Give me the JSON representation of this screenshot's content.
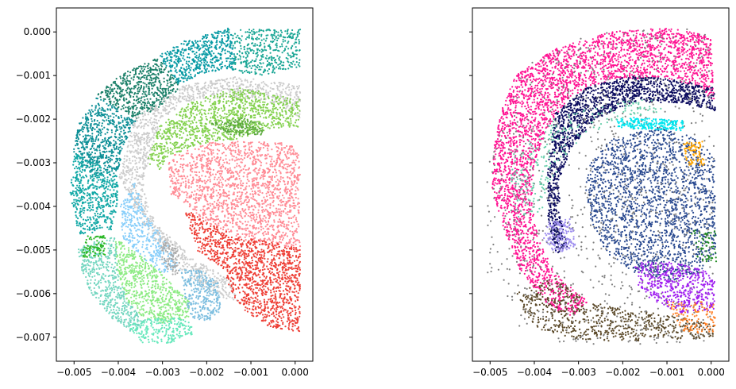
{
  "chart_data": [
    {
      "type": "scatter",
      "xlim": [
        -0.0054,
        0.0004
      ],
      "ylim": [
        -0.00755,
        0.00055
      ],
      "x_ticks": [
        -0.005,
        -0.004,
        -0.003,
        -0.002,
        -0.001,
        0.0
      ],
      "x_tick_labels": [
        "−0.005",
        "−0.004",
        "−0.003",
        "−0.002",
        "−0.001",
        "0.000"
      ],
      "y_ticks": [
        0.0,
        -0.001,
        -0.002,
        -0.003,
        -0.004,
        -0.005,
        -0.006,
        -0.007
      ],
      "y_tick_labels": [
        "0.000",
        "−0.001",
        "−0.002",
        "−0.003",
        "−0.004",
        "−0.005",
        "−0.006",
        "−0.007"
      ],
      "grid": false,
      "regions_colors": [
        "#1aa695",
        "#089aa4",
        "#1a7f68",
        "#0d8f96",
        "#12a8a6",
        "#cccccc",
        "#83d14e",
        "#5aa83c",
        "#ff8b95",
        "#ee3f36",
        "#87cefa",
        "#8deb84",
        "#74d6c0",
        "#66e8bc",
        "#7fbfe0",
        "#2cb827",
        "#aaaaaa"
      ]
    },
    {
      "type": "scatter",
      "xlim": [
        -0.0054,
        0.0004
      ],
      "ylim": [
        -0.00755,
        0.00055
      ],
      "x_ticks": [
        -0.005,
        -0.004,
        -0.003,
        -0.002,
        -0.001,
        0.0
      ],
      "x_tick_labels": [
        "−0.005",
        "−0.004",
        "−0.003",
        "−0.002",
        "−0.001",
        "0.000"
      ],
      "y_ticks": [
        0.0,
        -0.001,
        -0.002,
        -0.003,
        -0.004,
        -0.005,
        -0.006,
        -0.007
      ],
      "y_tick_labels": [
        "",
        "",
        "",
        "",
        "",
        "",
        "",
        ""
      ],
      "grid": false,
      "regions_colors": [
        "#ff1493",
        "#0b0b5e",
        "#2a4a90",
        "#5c4a2a",
        "#7f7f7f",
        "#00e5ee",
        "#a020f0",
        "#ff7f24",
        "#ffa500",
        "#9f8fef",
        "#66cdaa",
        "#228b22"
      ]
    }
  ]
}
